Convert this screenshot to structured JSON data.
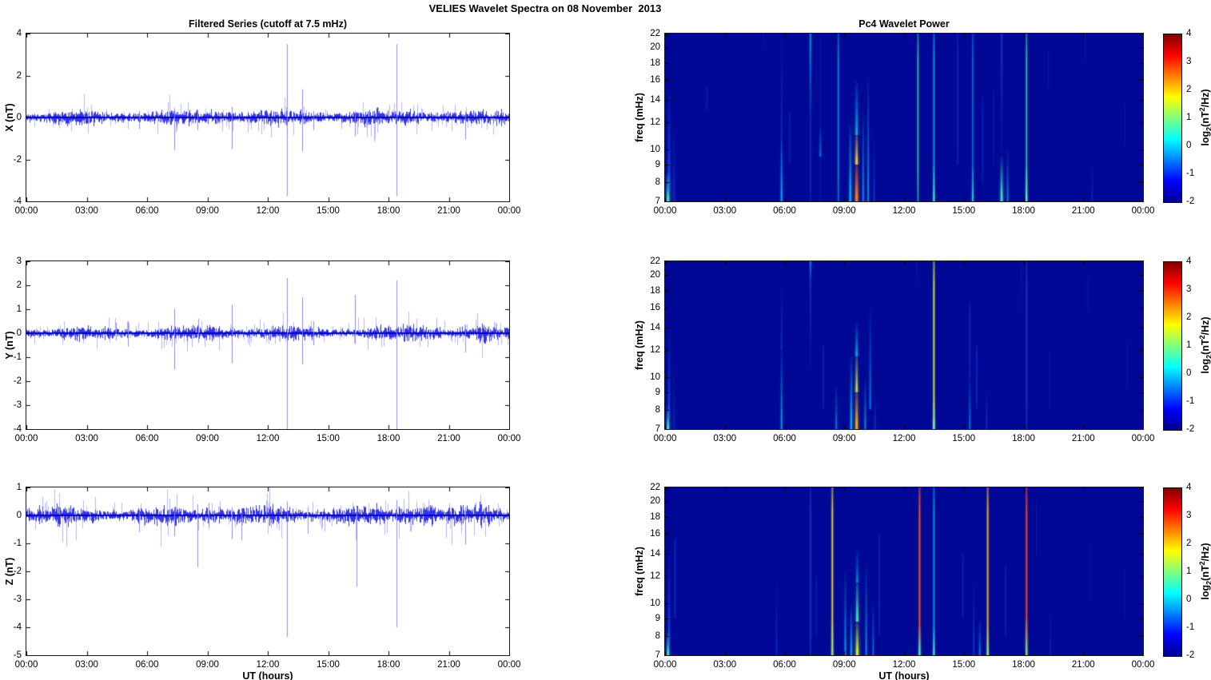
{
  "figure": {
    "title": "VELIES Wavelet Spectra on 08 November  2013",
    "xlabel": "UT (hours)",
    "xtick_labels": [
      "00:00",
      "03:00",
      "06:00",
      "09:00",
      "12:00",
      "15:00",
      "18:00",
      "21:00",
      "00:00"
    ],
    "xtick_hours": [
      0,
      3,
      6,
      9,
      12,
      15,
      18,
      21,
      24
    ],
    "trace_color": "#0000ee",
    "spike_color": "#8080f8",
    "axis_color": "#1a1a1a"
  },
  "chart_data": [
    {
      "id": "ts-x",
      "type": "line",
      "title": "Filtered Series (cutoff at 7.5 mHz)",
      "ylabel": "X (nT)",
      "ylim": [
        -4,
        4
      ],
      "yticks": [
        4,
        2,
        0,
        -2,
        -4
      ],
      "xlim_hours": [
        0,
        24
      ],
      "seed": 11,
      "noise_amp": 0.2,
      "bursts": [
        [
          8.9,
          10.3,
          1.3
        ],
        [
          16.8,
          17.6,
          1.2
        ],
        [
          18.6,
          20.2,
          1.35
        ],
        [
          23.2,
          23.8,
          1.4
        ]
      ],
      "spikes": [
        [
          5.6,
          0.3,
          -0.55
        ],
        [
          7.35,
          0.45,
          -1.55
        ],
        [
          8.5,
          0.35,
          -0.6
        ],
        [
          10.2,
          0.5,
          -1.5
        ],
        [
          12.95,
          3.5,
          -3.75
        ],
        [
          13.7,
          1.35,
          -1.6
        ],
        [
          14.25,
          0.3,
          -0.6
        ],
        [
          16.35,
          0.3,
          -0.9
        ],
        [
          18.4,
          3.5,
          -3.75
        ],
        [
          21.8,
          0.3,
          -1.05
        ]
      ]
    },
    {
      "id": "ts-y",
      "type": "line",
      "title": "",
      "ylabel": "Y (nT)",
      "ylim": [
        -4,
        3
      ],
      "yticks": [
        3,
        2,
        1,
        0,
        -1,
        -2,
        -3,
        -4
      ],
      "xlim_hours": [
        0,
        24
      ],
      "seed": 23,
      "noise_amp": 0.16,
      "bursts": [
        [
          8.9,
          10.3,
          1.4
        ],
        [
          18.7,
          20.6,
          1.6
        ],
        [
          22.3,
          23.3,
          1.3
        ]
      ],
      "spikes": [
        [
          4.45,
          0.45,
          -0.3
        ],
        [
          5.05,
          0.5,
          -0.55
        ],
        [
          7.35,
          1.0,
          -1.5
        ],
        [
          8.55,
          0.6,
          -0.4
        ],
        [
          10.2,
          1.2,
          -1.25
        ],
        [
          12.95,
          2.3,
          -4.0
        ],
        [
          13.7,
          1.5,
          -1.3
        ],
        [
          14.25,
          0.5,
          -0.5
        ],
        [
          16.35,
          1.6,
          -0.45
        ],
        [
          18.4,
          2.2,
          -4.0
        ],
        [
          21.8,
          0.35,
          -0.8
        ]
      ]
    },
    {
      "id": "ts-z",
      "type": "line",
      "title": "",
      "ylabel": "Z (nT)",
      "ylim": [
        -5,
        1
      ],
      "yticks": [
        1,
        0,
        -1,
        -2,
        -3,
        -4,
        -5
      ],
      "xlim_hours": [
        0,
        24
      ],
      "seed": 37,
      "noise_amp": 0.19,
      "bursts": [
        [
          8.9,
          10.0,
          1.3
        ],
        [
          18.5,
          20.2,
          1.6
        ],
        [
          22.5,
          23.3,
          1.4
        ]
      ],
      "spikes": [
        [
          5.6,
          0.2,
          -0.6
        ],
        [
          7.35,
          0.3,
          -0.75
        ],
        [
          8.5,
          0.4,
          -1.85
        ],
        [
          9.05,
          0.45,
          -0.45
        ],
        [
          10.2,
          0.3,
          -0.85
        ],
        [
          10.7,
          0.25,
          -0.9
        ],
        [
          12.95,
          0.5,
          -4.35
        ],
        [
          14.0,
          0.3,
          -0.65
        ],
        [
          16.4,
          0.3,
          -2.55
        ],
        [
          18.4,
          0.55,
          -4.0
        ],
        [
          21.8,
          0.3,
          -1.05
        ]
      ]
    },
    {
      "id": "wav-x",
      "type": "heatmap",
      "title": "Pc4 Wavelet Power",
      "ylabel": "freq (mHz)",
      "yticks": [
        22,
        20,
        18,
        16,
        14,
        12,
        10,
        9,
        8,
        7
      ],
      "flim": [
        7,
        22
      ],
      "yscale": "log",
      "background": "#000895",
      "features": [
        [
          0.15,
          7,
          8.5,
          "#35ffc8",
          3,
          0.9,
          "b"
        ],
        [
          0.2,
          7.5,
          15,
          "#2f74ff",
          2.5,
          0.5,
          "b"
        ],
        [
          0.45,
          7,
          12,
          "#1b50f0",
          2,
          0.35,
          "b"
        ],
        [
          2.1,
          13,
          15.5,
          "#1038c8",
          1.5,
          0.3,
          "f"
        ],
        [
          4.95,
          19,
          22,
          "#1038c8",
          1,
          0.3,
          "t"
        ],
        [
          5.85,
          7,
          22,
          "#2566ff",
          1.5,
          0.45,
          "b"
        ],
        [
          5.85,
          7,
          10.5,
          "#00cfff",
          1.8,
          0.6,
          "b"
        ],
        [
          6.25,
          9,
          13,
          "#1440d8",
          1.5,
          0.3,
          "f"
        ],
        [
          7.3,
          11,
          22,
          "#00cfff",
          1.5,
          0.65,
          "t"
        ],
        [
          7.3,
          7,
          12,
          "#1b50f0",
          1.2,
          0.35,
          "f"
        ],
        [
          7.8,
          9.5,
          11.5,
          "#00dfff",
          1.6,
          0.5,
          "b"
        ],
        [
          7.8,
          7,
          22,
          "#1440d8",
          1,
          0.28,
          "f"
        ],
        [
          8.7,
          7,
          22,
          "#00cfff",
          1.3,
          0.6,
          "f"
        ],
        [
          9.3,
          7,
          12,
          "#00e5ff",
          2,
          0.75,
          "b"
        ],
        [
          9.62,
          7,
          9.5,
          "#ff8400",
          3.2,
          0.95,
          "b"
        ],
        [
          9.62,
          9,
          11.5,
          "#ffe030",
          2.6,
          0.85,
          "b"
        ],
        [
          9.62,
          11,
          16,
          "#00dfff",
          2.6,
          0.6,
          "b"
        ],
        [
          9.95,
          7,
          13,
          "#00cfff",
          1.6,
          0.6,
          "b"
        ],
        [
          10.2,
          7,
          16.5,
          "#00cfff",
          1.6,
          0.6,
          "b"
        ],
        [
          10.5,
          7,
          11,
          "#2566ff",
          1.3,
          0.4,
          "b"
        ],
        [
          12.7,
          7,
          22,
          "#3fdc96",
          1.3,
          0.8,
          "f"
        ],
        [
          13.5,
          7,
          22,
          "#00cfff",
          1.3,
          0.7,
          "f"
        ],
        [
          13.5,
          7,
          9,
          "#66ffc8",
          1.6,
          0.8,
          "b"
        ],
        [
          14.7,
          9,
          22,
          "#2055ff",
          1.1,
          0.35,
          "f"
        ],
        [
          15.45,
          7,
          22,
          "#00bfff",
          1.3,
          0.5,
          "f"
        ],
        [
          15.45,
          7,
          9,
          "#45ffd2",
          1.6,
          0.65,
          "b"
        ],
        [
          15.95,
          8,
          14,
          "#2055ff",
          1.1,
          0.3,
          "f"
        ],
        [
          16.5,
          9,
          15,
          "#1440d8",
          1,
          0.28,
          "f"
        ],
        [
          16.9,
          7,
          9.5,
          "#50ffd2",
          2.6,
          0.8,
          "b"
        ],
        [
          16.9,
          9,
          22,
          "#2566ff",
          1.5,
          0.4,
          "t"
        ],
        [
          17.2,
          7,
          10,
          "#00cfff",
          1.6,
          0.5,
          "b"
        ],
        [
          18.15,
          7,
          22,
          "#37e0a0",
          1.4,
          0.8,
          "f"
        ],
        [
          18.15,
          7,
          9,
          "#7cffb4",
          1.7,
          0.85,
          "b"
        ],
        [
          19.25,
          15,
          20,
          "#1038c8",
          1,
          0.28,
          "f"
        ],
        [
          21.1,
          17,
          22,
          "#1240cf",
          1,
          0.3,
          "t"
        ],
        [
          21.45,
          7,
          9.5,
          "#1b50f0",
          1.4,
          0.3,
          "b"
        ],
        [
          23.1,
          10,
          14,
          "#1038c8",
          1,
          0.26,
          "f"
        ]
      ]
    },
    {
      "id": "wav-y",
      "type": "heatmap",
      "title": "",
      "ylabel": "freq (mHz)",
      "yticks": [
        22,
        20,
        18,
        16,
        14,
        12,
        10,
        9,
        8,
        7
      ],
      "flim": [
        7,
        22
      ],
      "yscale": "log",
      "background": "#000895",
      "features": [
        [
          0.15,
          7,
          8.2,
          "#45ffd2",
          2.6,
          0.85,
          "b"
        ],
        [
          0.2,
          7.5,
          14,
          "#2f74ff",
          2,
          0.45,
          "b"
        ],
        [
          0.45,
          7,
          11,
          "#1b50f0",
          1.6,
          0.3,
          "b"
        ],
        [
          5.85,
          7,
          12.5,
          "#00cfff",
          1.6,
          0.65,
          "b"
        ],
        [
          5.85,
          12,
          19,
          "#2055ff",
          1.3,
          0.4,
          "b"
        ],
        [
          7.3,
          10,
          22,
          "#2566ff",
          1.3,
          0.45,
          "t"
        ],
        [
          7.3,
          19.5,
          22,
          "#00cfff",
          1.3,
          0.5,
          "t"
        ],
        [
          7.95,
          8,
          12.5,
          "#1b50f0",
          1.3,
          0.32,
          "f"
        ],
        [
          8.6,
          7,
          9.5,
          "#00cfff",
          1.6,
          0.5,
          "b"
        ],
        [
          9.35,
          7,
          11.5,
          "#00e0ff",
          2.1,
          0.7,
          "b"
        ],
        [
          9.62,
          7,
          9.5,
          "#ffb400",
          2.8,
          0.95,
          "b"
        ],
        [
          9.62,
          9,
          12,
          "#cdf53c",
          2.3,
          0.85,
          "b"
        ],
        [
          9.62,
          11.5,
          14.5,
          "#00dfff",
          2.2,
          0.6,
          "b"
        ],
        [
          10.05,
          7,
          10,
          "#00cfff",
          1.6,
          0.55,
          "b"
        ],
        [
          10.3,
          8,
          16,
          "#00bfff",
          1.6,
          0.55,
          "b"
        ],
        [
          10.55,
          7,
          9,
          "#2566ff",
          1.3,
          0.35,
          "b"
        ],
        [
          12.65,
          17,
          22,
          "#1038c8",
          1,
          0.28,
          "t"
        ],
        [
          13.5,
          7,
          22,
          "#d9ef2e",
          1.5,
          0.9,
          "f"
        ],
        [
          13.5,
          7,
          8.5,
          "#8cffb4",
          1.8,
          0.9,
          "b"
        ],
        [
          15.3,
          7,
          10.5,
          "#00cfff",
          1.4,
          0.5,
          "b"
        ],
        [
          15.3,
          10,
          16.5,
          "#2055ff",
          1.2,
          0.33,
          "f"
        ],
        [
          15.65,
          8,
          12.5,
          "#2055ff",
          1.2,
          0.33,
          "f"
        ],
        [
          16.15,
          7,
          9.5,
          "#2566ff",
          1.3,
          0.33,
          "b"
        ],
        [
          17.9,
          13,
          22,
          "#1038c8",
          1,
          0.27,
          "t"
        ],
        [
          18.15,
          7,
          22,
          "#2566ff",
          1.2,
          0.4,
          "f"
        ],
        [
          19.3,
          8,
          12,
          "#1038c8",
          1,
          0.25,
          "f"
        ],
        [
          21.2,
          15.5,
          20,
          "#0f34bd",
          1,
          0.24,
          "f"
        ],
        [
          23.2,
          9,
          13,
          "#0f34bd",
          1,
          0.24,
          "f"
        ]
      ]
    },
    {
      "id": "wav-z",
      "type": "heatmap",
      "title": "",
      "ylabel": "freq (mHz)",
      "yticks": [
        22,
        20,
        18,
        16,
        14,
        12,
        10,
        9,
        8,
        7
      ],
      "flim": [
        7,
        22
      ],
      "yscale": "log",
      "background": "#000895",
      "features": [
        [
          0.15,
          7,
          8.2,
          "#45ffd2",
          2.6,
          0.85,
          "b"
        ],
        [
          0.2,
          7.5,
          14,
          "#2f74ff",
          2,
          0.45,
          "b"
        ],
        [
          0.5,
          9,
          15.5,
          "#2055ff",
          1.3,
          0.35,
          "f"
        ],
        [
          5.6,
          7,
          12,
          "#2055ff",
          1.3,
          0.32,
          "b"
        ],
        [
          7.3,
          7,
          22,
          "#2566ff",
          1.3,
          0.42,
          "f"
        ],
        [
          7.6,
          8,
          12,
          "#1b50f0",
          1.1,
          0.28,
          "f"
        ],
        [
          8.4,
          7,
          22,
          "#ffe028",
          1.5,
          0.85,
          "f"
        ],
        [
          8.4,
          7,
          9,
          "#9cff78",
          1.7,
          0.8,
          "b"
        ],
        [
          9.05,
          7,
          12.5,
          "#00dfff",
          1.6,
          0.6,
          "b"
        ],
        [
          9.35,
          7,
          10,
          "#00e5ff",
          1.7,
          0.65,
          "b"
        ],
        [
          9.65,
          7,
          9,
          "#c3f825",
          3.2,
          0.95,
          "b"
        ],
        [
          9.65,
          8.8,
          12,
          "#4fffb0",
          2.7,
          0.8,
          "b"
        ],
        [
          9.65,
          11.5,
          14.5,
          "#00c3ff",
          2.2,
          0.5,
          "b"
        ],
        [
          10.1,
          7,
          13,
          "#00cfff",
          1.5,
          0.6,
          "b"
        ],
        [
          10.45,
          7,
          10,
          "#00bfff",
          1.4,
          0.5,
          "b"
        ],
        [
          10.75,
          8,
          16,
          "#2055ff",
          1.1,
          0.33,
          "f"
        ],
        [
          12.78,
          7,
          22,
          "#ff5a1e",
          1.5,
          0.9,
          "f"
        ],
        [
          12.78,
          7,
          8.5,
          "#45ffd2",
          1.9,
          0.9,
          "b"
        ],
        [
          13.5,
          7,
          22,
          "#00cfff",
          1.4,
          0.65,
          "f"
        ],
        [
          13.5,
          7,
          8.5,
          "#6effd2",
          1.6,
          0.8,
          "b"
        ],
        [
          14.95,
          9,
          14,
          "#2055ff",
          1.1,
          0.3,
          "f"
        ],
        [
          15.5,
          7,
          12,
          "#2566ff",
          1.3,
          0.4,
          "b"
        ],
        [
          15.8,
          7,
          9,
          "#00cfff",
          1.5,
          0.5,
          "b"
        ],
        [
          16.2,
          7,
          22,
          "#ffc31e",
          1.5,
          0.85,
          "f"
        ],
        [
          16.2,
          7,
          8.5,
          "#8cffa0",
          1.7,
          0.85,
          "b"
        ],
        [
          17.1,
          8,
          13,
          "#2055ff",
          1.1,
          0.3,
          "f"
        ],
        [
          18.15,
          7,
          22,
          "#ff4614",
          1.5,
          0.9,
          "f"
        ],
        [
          18.15,
          7,
          9,
          "#69ff87",
          1.9,
          0.88,
          "b"
        ],
        [
          18.65,
          13.5,
          20,
          "#1038c8",
          1,
          0.27,
          "f"
        ],
        [
          19.35,
          7,
          10,
          "#2055ff",
          1.1,
          0.3,
          "b"
        ],
        [
          21.35,
          10,
          15,
          "#1038c8",
          1,
          0.26,
          "f"
        ],
        [
          23.1,
          9,
          13,
          "#0f34bd",
          1,
          0.22,
          "f"
        ]
      ]
    }
  ],
  "colorbar": {
    "range": [
      -2,
      4
    ],
    "ticks": [
      4,
      3,
      2,
      1,
      0,
      -1,
      -2
    ],
    "label_prefix": "log",
    "label_sub": "2",
    "label_mid": "(nT",
    "label_sup": "2",
    "label_suffix": "/Hz)",
    "stops": [
      [
        "#000090",
        0
      ],
      [
        "#0000ff",
        12.5
      ],
      [
        "#00ffff",
        37.5
      ],
      [
        "#ffff00",
        62.5
      ],
      [
        "#ff0000",
        87.5
      ],
      [
        "#800000",
        100
      ]
    ]
  }
}
